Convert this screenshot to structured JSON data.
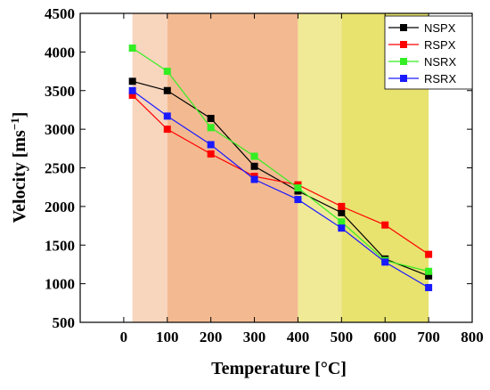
{
  "chart_data": {
    "type": "line",
    "xlabel": "Temperature [°C]",
    "ylabel_main": "Velocity [ms",
    "ylabel_sup": "−1",
    "ylabel_close": "]",
    "xlim": [
      -100,
      800
    ],
    "ylim": [
      500,
      4500
    ],
    "xticks": [
      0,
      100,
      200,
      300,
      400,
      500,
      600,
      700,
      800
    ],
    "yticks": [
      500,
      1000,
      1500,
      2000,
      2500,
      3000,
      3500,
      4000,
      4500
    ],
    "grid": false,
    "legend_position": "top-right",
    "bands": [
      {
        "from": 20,
        "to": 100,
        "color": "#f8d5bd"
      },
      {
        "from": 100,
        "to": 400,
        "color": "#f3ba91"
      },
      {
        "from": 400,
        "to": 500,
        "color": "#f0e996"
      },
      {
        "from": 500,
        "to": 700,
        "color": "#e8e26e"
      }
    ],
    "x": [
      20,
      100,
      200,
      300,
      400,
      500,
      600,
      700
    ],
    "series": [
      {
        "name": "NSPX",
        "color": "#000000",
        "marker": "#000000",
        "values": [
          3620,
          3500,
          3140,
          2520,
          2200,
          1920,
          1320,
          1100
        ]
      },
      {
        "name": "RSPX",
        "color": "#ff0000",
        "marker": "#ff0000",
        "values": [
          3440,
          3000,
          2680,
          2390,
          2280,
          2000,
          1760,
          1380
        ]
      },
      {
        "name": "NSRX",
        "color": "#33ee22",
        "marker": "#33ee22",
        "values": [
          4050,
          3750,
          3020,
          2650,
          2240,
          1800,
          1300,
          1160
        ]
      },
      {
        "name": "RSRX",
        "color": "#1a1aff",
        "marker": "#1a1aff",
        "values": [
          3500,
          3170,
          2800,
          2350,
          2090,
          1720,
          1280,
          950
        ]
      }
    ]
  }
}
